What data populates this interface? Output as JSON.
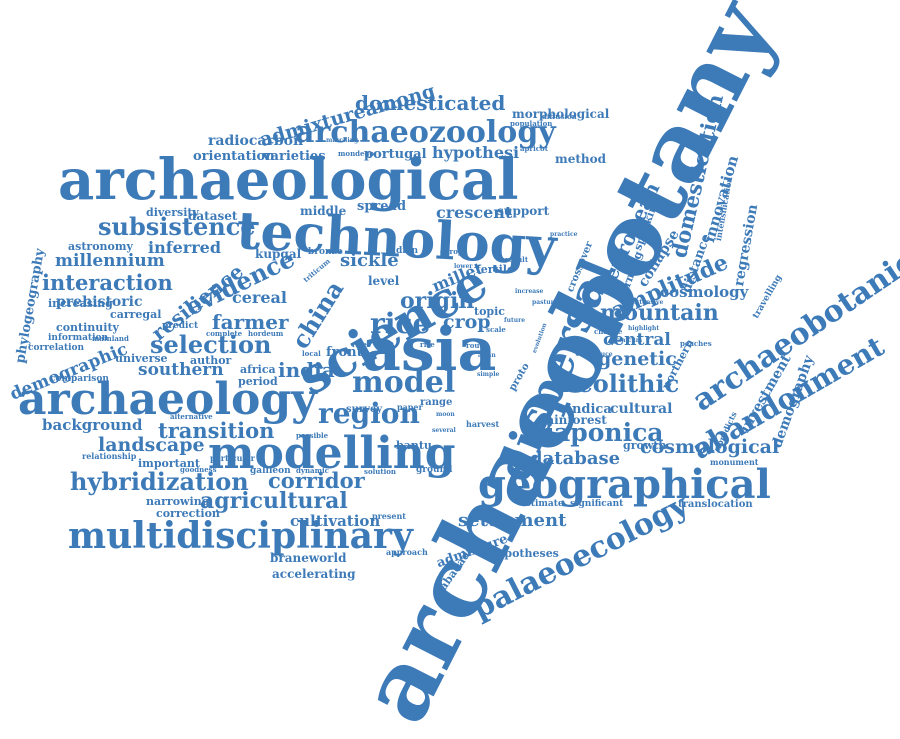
{
  "colors": {
    "word": "#3d7ab8",
    "background": "#ffffff"
  },
  "words": [
    "archaeobotany",
    "archaeological",
    "technology",
    "science",
    "asia",
    "archaeology",
    "modelling",
    "dispersal",
    "geographical",
    "multidisciplinary",
    "archaeobotanical",
    "abandonment",
    "palaeoecology",
    "archaeozoology",
    "domesticated",
    "admixtureamong",
    "radiocarbon",
    "orientation",
    "varieties",
    "portugal",
    "hypothesi",
    "method",
    "morphological",
    "population",
    "domestication",
    "subsistence",
    "evidence",
    "resilience",
    "interaction",
    "millennium",
    "inferred",
    "china",
    "rice",
    "origin",
    "crop",
    "selection",
    "farmer",
    "cereal",
    "sickle",
    "millet",
    "region",
    "model",
    "india",
    "southern",
    "background",
    "transition",
    "landscape",
    "hybridization",
    "corridor",
    "agricultural",
    "cultivation",
    "settlement",
    "database",
    "japonica",
    "cosmological",
    "cosmology",
    "mountain",
    "neolithic",
    "genetic",
    "central",
    "amplitude",
    "european",
    "innovation",
    "regression",
    "demography",
    "investment",
    "cultural",
    "indica",
    "rainforest",
    "growth",
    "translocation",
    "estimate",
    "significant",
    "braneworld",
    "accelerating",
    "gabadadze",
    "admixture",
    "hypotheses",
    "demographic",
    "phylogeography",
    "prehistoric",
    "increasing",
    "carregal",
    "continuity",
    "information",
    "correlation",
    "comparison",
    "crescent",
    "support",
    "spread",
    "middle",
    "dataset",
    "diversity",
    "astronomy",
    "kupgal",
    "bronze",
    "level",
    "fertile",
    "topic",
    "front",
    "universe",
    "author",
    "africa",
    "period",
    "alternative",
    "relationship",
    "important",
    "goodness",
    "galileon",
    "dynamic",
    "solution",
    "ground",
    "present",
    "approach",
    "correction",
    "narrowing",
    "particular",
    "possible",
    "bantu",
    "harvest",
    "survey",
    "paper",
    "range",
    "proto",
    "distance",
    "collapse",
    "farming",
    "speaking",
    "crossover",
    "travelling",
    "cpredicts",
    "northern",
    "monument",
    "extensive",
    "peaches",
    "panicum",
    "introduce",
    "highlight",
    "change",
    "predict",
    "complete",
    "hordeum",
    "mainland",
    "diffusion",
    "apricot",
    "mondego",
    "intensification",
    "indian",
    "europe",
    "river",
    "time",
    "local",
    "rise",
    "route",
    "result",
    "practice",
    "increase",
    "pasture",
    "scale",
    "asian",
    "triticum",
    "simple",
    "several",
    "moon",
    "evolution",
    "marching",
    "lower",
    "future"
  ]
}
